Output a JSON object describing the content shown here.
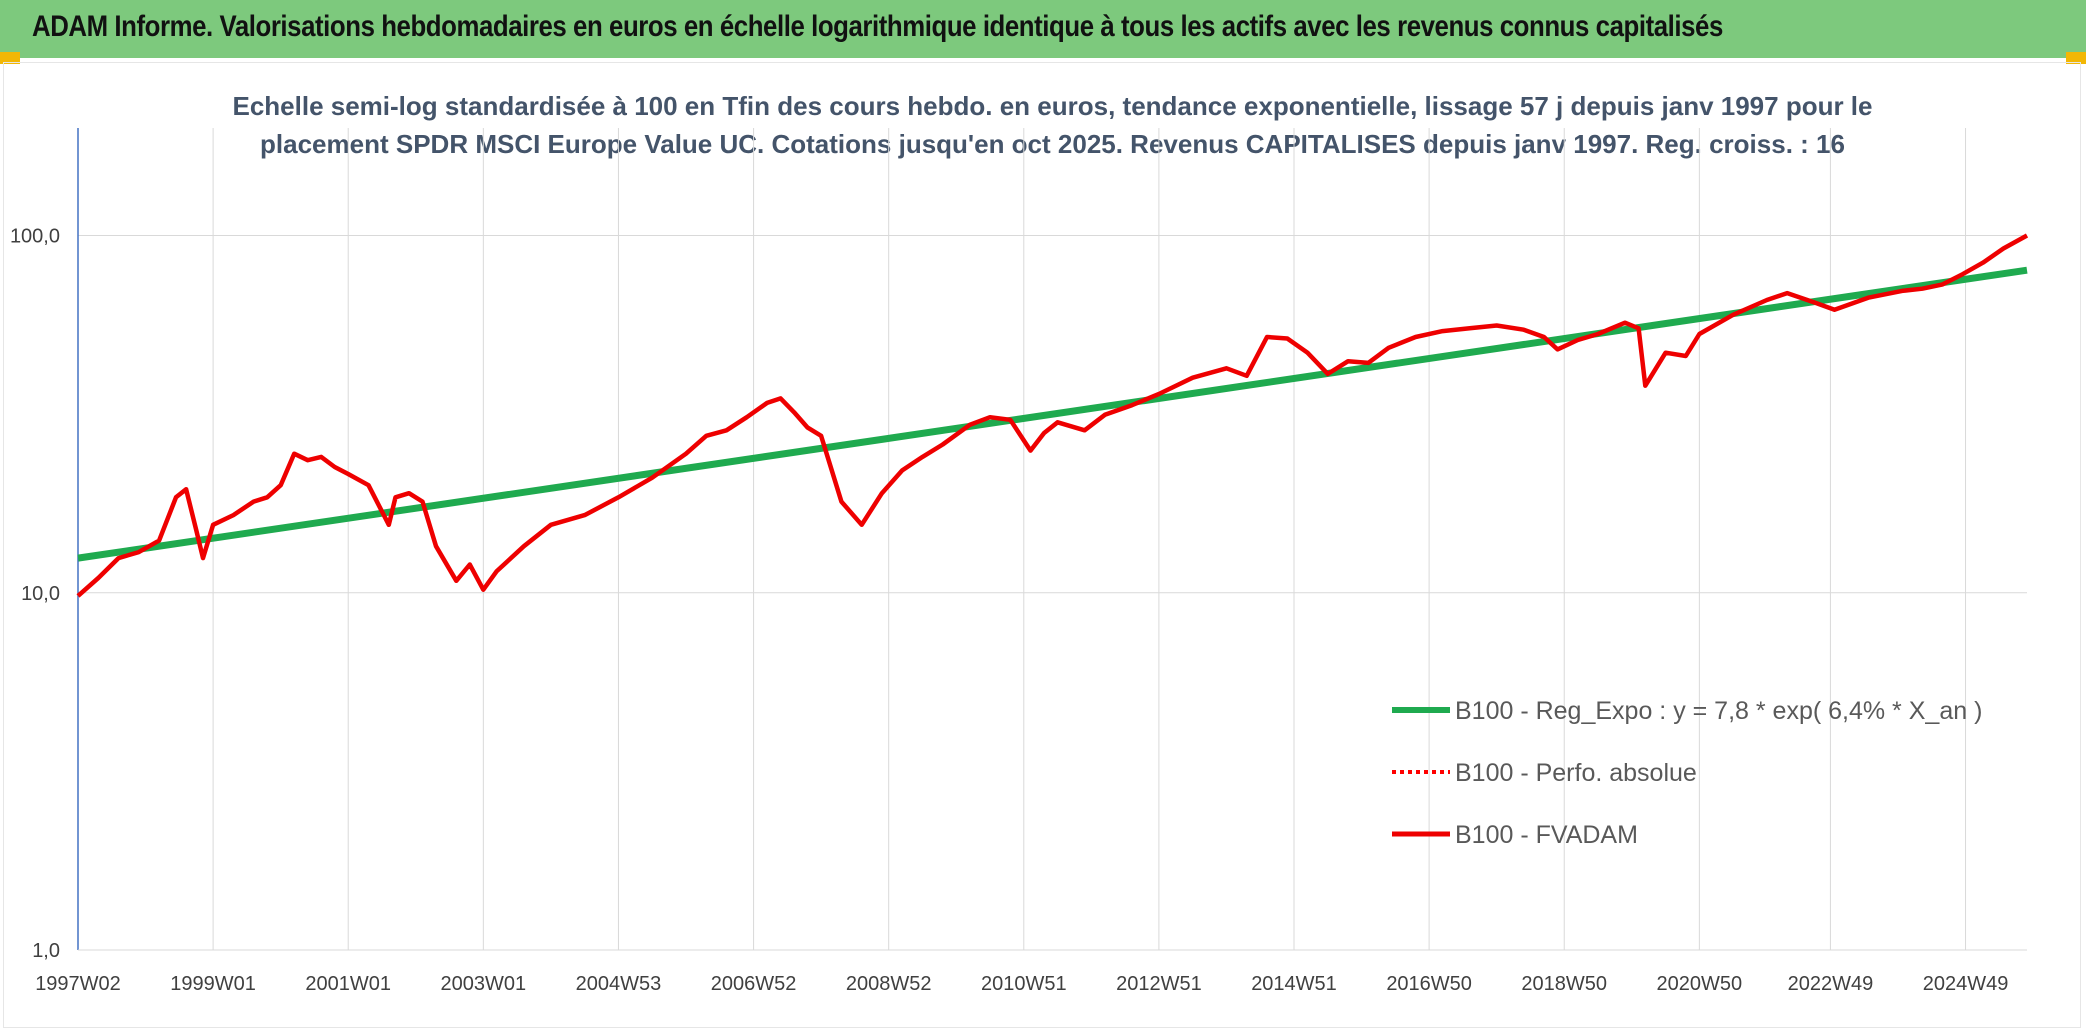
{
  "banner": {
    "title": "ADAM Informe. Valorisations hebdomadaires en euros en échelle logarithmique identique à tous les actifs avec les revenus connus capitalisés"
  },
  "colors": {
    "banner_bg": "#7dc97d",
    "corner": "#f2b705",
    "trend": "#1faa4f",
    "perf": "#ff0000",
    "fvadam": "#ee0000"
  },
  "chart_data": {
    "type": "line",
    "title_lines": [
      "Echelle semi-log standardisée à 100 en Tfin des cours hebdo. en euros, tendance exponentielle, lissage 57 j depuis janv 1997 pour le",
      "placement SPDR MSCI Europe Value UC. Cotations jusqu'en oct 2025. Revenus CAPITALISES depuis janv 1997. Reg. croiss. : 16"
    ],
    "y_scale": "log",
    "ylim": [
      1,
      200
    ],
    "y_ticks": [
      1,
      10,
      100
    ],
    "y_tick_labels": [
      "1,0",
      "10,0",
      "100,0"
    ],
    "xlim": [
      1997.0,
      2025.85
    ],
    "x_ticks": [
      1997.0,
      1999.0,
      2001.0,
      2003.0,
      2005.0,
      2007.0,
      2009.0,
      2011.0,
      2013.0,
      2015.0,
      2017.0,
      2019.0,
      2021.0,
      2022.94,
      2024.94
    ],
    "x_tick_labels": [
      "1997W02",
      "1999W01",
      "2001W01",
      "2003W01",
      "2004W53",
      "2006W52",
      "2008W52",
      "2010W51",
      "2012W51",
      "2014W51",
      "2016W50",
      "2018W50",
      "2020W50",
      "2022W49",
      "2024W49"
    ],
    "grid": true,
    "legend_position": "bottom-right",
    "series": [
      {
        "name": "B100 - Reg_Expo : y = 7,8 * exp( 6,4% *  X_an )",
        "style": "solid-thick",
        "color": "#1faa4f",
        "x": [
          1997.0,
          2025.85
        ],
        "y": [
          12.5,
          80.0
        ]
      },
      {
        "name": "B100 - Perfo. absolue",
        "style": "dotted",
        "color": "#ff0000",
        "x": [],
        "y": []
      },
      {
        "name": "B100 - FVADAM",
        "style": "solid",
        "color": "#ee0000",
        "x": [
          1997.0,
          1997.3,
          1997.6,
          1997.9,
          1998.2,
          1998.45,
          1998.6,
          1998.75,
          1998.85,
          1999.0,
          1999.3,
          1999.6,
          1999.8,
          2000.0,
          2000.2,
          2000.4,
          2000.6,
          2000.8,
          2001.0,
          2001.3,
          2001.6,
          2001.7,
          2001.9,
          2002.1,
          2002.3,
          2002.6,
          2002.8,
          2003.0,
          2003.2,
          2003.6,
          2004.0,
          2004.5,
          2005.0,
          2005.5,
          2006.0,
          2006.3,
          2006.6,
          2006.9,
          2007.2,
          2007.4,
          2007.6,
          2007.8,
          2008.0,
          2008.3,
          2008.6,
          2008.9,
          2009.2,
          2009.5,
          2009.8,
          2010.2,
          2010.5,
          2010.8,
          2011.1,
          2011.3,
          2011.5,
          2011.9,
          2012.2,
          2012.6,
          2013.0,
          2013.5,
          2014.0,
          2014.3,
          2014.6,
          2014.9,
          2015.2,
          2015.5,
          2015.8,
          2016.1,
          2016.4,
          2016.8,
          2017.2,
          2017.6,
          2018.0,
          2018.4,
          2018.7,
          2018.9,
          2019.2,
          2019.5,
          2019.9,
          2020.1,
          2020.2,
          2020.5,
          2020.8,
          2021.0,
          2021.5,
          2022.0,
          2022.3,
          2022.7,
          2023.0,
          2023.5,
          2024.0,
          2024.3,
          2024.6,
          2024.9,
          2025.2,
          2025.5,
          2025.85
        ],
        "y": [
          9.8,
          11.0,
          12.5,
          13.0,
          14.0,
          18.5,
          19.5,
          15.0,
          12.5,
          15.5,
          16.5,
          18.0,
          18.5,
          20.0,
          24.5,
          23.5,
          24.0,
          22.5,
          21.5,
          20.0,
          15.5,
          18.5,
          19.0,
          18.0,
          13.5,
          10.8,
          12.0,
          10.2,
          11.5,
          13.5,
          15.5,
          16.5,
          18.5,
          21.0,
          24.5,
          27.5,
          28.5,
          31.0,
          34.0,
          35.0,
          32.0,
          29.0,
          27.5,
          18.0,
          15.5,
          19.0,
          22.0,
          24.0,
          26.0,
          29.5,
          31.0,
          30.5,
          25.0,
          28.0,
          30.0,
          28.5,
          31.5,
          33.5,
          36.0,
          40.0,
          42.5,
          40.5,
          52.0,
          51.5,
          47.0,
          41.0,
          44.5,
          44.0,
          48.5,
          52.0,
          54.0,
          55.0,
          56.0,
          54.5,
          52.0,
          48.0,
          51.0,
          53.0,
          57.0,
          55.0,
          38.0,
          47.0,
          46.0,
          53.0,
          60.0,
          66.0,
          69.0,
          65.0,
          62.0,
          67.0,
          70.0,
          71.0,
          73.0,
          78.0,
          84.0,
          92.0,
          100.0
        ]
      }
    ]
  }
}
